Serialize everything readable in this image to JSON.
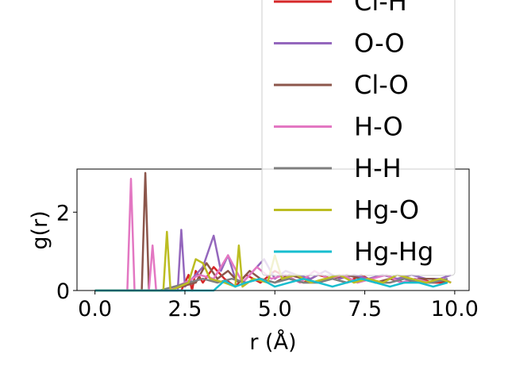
{
  "chart_data": {
    "type": "line",
    "title": "",
    "xlabel": "r (Å)",
    "ylabel": "g(r)",
    "xlim": [
      -0.5,
      10.4
    ],
    "ylim": [
      0,
      3.1
    ],
    "xticks": [
      "0.0",
      "2.5",
      "5.0",
      "7.5",
      "10.0"
    ],
    "xtick_values": [
      0,
      2.5,
      5,
      7.5,
      10
    ],
    "yticks": [
      "0",
      "2"
    ],
    "ytick_values": [
      0,
      2
    ],
    "grid": false,
    "legend_position": "upper-right, extending above the axes",
    "series": [
      {
        "name": "Cl-H",
        "color": "#d62728",
        "x": [
          0,
          2.4,
          2.6,
          2.7,
          2.8,
          3.0,
          3.3,
          3.6,
          3.9,
          4.2,
          4.6,
          5.0,
          5.4,
          5.8,
          6.2,
          6.6,
          7.0,
          7.4,
          7.8,
          8.2,
          8.6,
          9.0,
          9.4,
          9.8
        ],
        "y": [
          0,
          0,
          0.4,
          0,
          0.5,
          0.2,
          0.6,
          0.3,
          0.1,
          0.4,
          0.2,
          0.5,
          0.3,
          0.2,
          0.4,
          0.3,
          0.2,
          0.4,
          0.2,
          0.3,
          0.2,
          0.3,
          0.2,
          0.2
        ]
      },
      {
        "name": "O-O",
        "color": "#9467bd",
        "x": [
          0,
          2.3,
          2.4,
          2.5,
          2.7,
          3.0,
          3.3,
          3.5,
          3.7,
          3.9,
          4.1,
          4.4,
          4.7,
          5.0,
          5.3,
          5.6,
          6.0,
          6.4,
          6.8,
          7.2,
          7.6,
          8.0,
          8.4,
          8.8,
          9.2,
          9.6,
          9.9
        ],
        "y": [
          0,
          0,
          1.55,
          0.1,
          0.3,
          0.6,
          1.4,
          0.5,
          0.9,
          0.3,
          0.2,
          0.5,
          0.8,
          0.3,
          0.5,
          0.4,
          0.3,
          0.5,
          0.3,
          0.4,
          0.3,
          0.4,
          0.3,
          0.4,
          0.3,
          0.3,
          0.4
        ]
      },
      {
        "name": "Cl-O",
        "color": "#8c564b",
        "x": [
          0,
          1.3,
          1.4,
          1.5,
          1.7,
          2.0,
          2.4,
          2.8,
          3.1,
          3.4,
          3.7,
          4.0,
          4.3,
          4.6,
          5.0,
          5.4,
          5.8,
          6.2,
          6.6,
          7.0,
          7.4,
          7.8,
          8.2,
          8.6,
          9.0,
          9.4,
          9.8
        ],
        "y": [
          0,
          0,
          3.0,
          0,
          0,
          0,
          0.1,
          0.2,
          0.7,
          0.3,
          0.5,
          0.2,
          0.5,
          0.3,
          0.2,
          0.4,
          0.3,
          0.2,
          0.3,
          0.4,
          0.3,
          0.2,
          0.3,
          0.2,
          0.3,
          0.3,
          0.2
        ]
      },
      {
        "name": "H-O",
        "color": "#e377c2",
        "x": [
          0,
          0.9,
          1.0,
          1.1,
          1.5,
          1.6,
          1.7,
          2.0,
          2.5,
          2.9,
          3.3,
          3.7,
          4.1,
          4.5,
          4.9,
          5.3,
          5.7,
          6.1,
          6.5,
          6.9,
          7.3,
          7.7,
          8.1,
          8.5,
          8.9,
          9.3,
          9.7,
          9.9
        ],
        "y": [
          0,
          0,
          2.85,
          0,
          0,
          1.15,
          0,
          0,
          0.2,
          0.4,
          0.3,
          0.9,
          0.2,
          0.6,
          0.3,
          0.4,
          0.2,
          0.5,
          0.3,
          0.4,
          0.2,
          0.3,
          0.4,
          0.2,
          0.3,
          0.2,
          0.3,
          0.2
        ]
      },
      {
        "name": "H-H",
        "color": "#7f7f7f",
        "x": [
          0,
          1.8,
          2.2,
          2.6,
          3.0,
          3.4,
          3.8,
          4.2,
          4.6,
          5.0,
          5.4,
          5.8,
          6.2,
          6.6,
          7.0,
          7.4,
          7.8,
          8.2,
          8.6,
          9.0,
          9.4,
          9.8
        ],
        "y": [
          0,
          0,
          0.1,
          0.2,
          0.3,
          0.2,
          0.3,
          0.2,
          0.3,
          0.2,
          0.3,
          0.2,
          0.2,
          0.3,
          0.2,
          0.3,
          0.2,
          0.2,
          0.3,
          0.2,
          0.2,
          0.3
        ]
      },
      {
        "name": "Hg-O",
        "color": "#bcbd22",
        "x": [
          0,
          1.9,
          2.0,
          2.1,
          2.6,
          2.8,
          3.0,
          3.2,
          3.6,
          3.9,
          4.0,
          4.1,
          4.4,
          4.8,
          5.0,
          5.2,
          5.6,
          6.0,
          6.4,
          6.8,
          7.2,
          7.6,
          8.0,
          8.4,
          8.8,
          9.2,
          9.6,
          9.9
        ],
        "y": [
          0,
          0,
          1.5,
          0,
          0.2,
          0.8,
          0.7,
          0.3,
          0.2,
          0.1,
          1.15,
          0.1,
          0.3,
          0.2,
          0.9,
          0.3,
          0.4,
          0.2,
          0.3,
          0.4,
          0.2,
          0.3,
          0.2,
          0.4,
          0.3,
          0.2,
          0.3,
          0.2
        ]
      },
      {
        "name": "Hg-Hg",
        "color": "#17becf",
        "x": [
          0,
          3.3,
          3.6,
          3.9,
          4.2,
          4.6,
          5.0,
          5.4,
          5.8,
          6.2,
          6.6,
          7.0,
          7.4,
          7.8,
          8.2,
          8.6,
          9.0,
          9.4,
          9.8
        ],
        "y": [
          0,
          0,
          0.25,
          0.1,
          0.2,
          0.3,
          0.1,
          0.2,
          0.3,
          0.2,
          0.1,
          0.2,
          0.3,
          0.2,
          0.1,
          0.2,
          0.2,
          0.1,
          0.2
        ]
      }
    ]
  }
}
